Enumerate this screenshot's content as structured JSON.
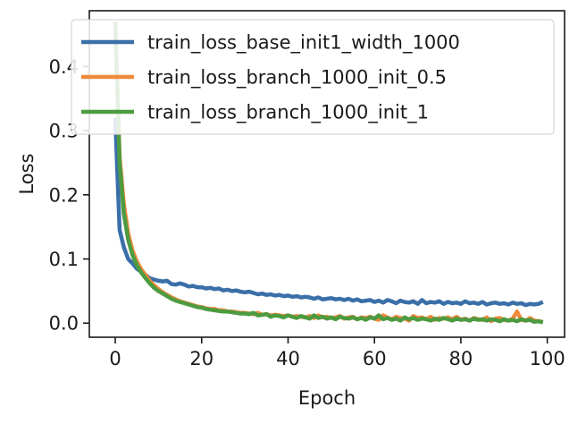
{
  "chart_data": {
    "type": "line",
    "xlabel": "Epoch",
    "ylabel": "Loss",
    "xlim": [
      -6,
      104
    ],
    "ylim": [
      -0.022,
      0.487
    ],
    "xticks": [
      0,
      20,
      40,
      60,
      80,
      100
    ],
    "yticks": [
      0.0,
      0.1,
      0.2,
      0.3,
      0.4
    ],
    "xtick_labels": [
      "0",
      "20",
      "40",
      "60",
      "80",
      "100"
    ],
    "ytick_labels": [
      "0.0",
      "0.1",
      "0.2",
      "0.3",
      "0.4"
    ],
    "grid": false,
    "legend_position": "top",
    "x": [
      0,
      1,
      2,
      3,
      4,
      5,
      6,
      7,
      8,
      9,
      10,
      11,
      12,
      13,
      14,
      15,
      16,
      17,
      18,
      19,
      20,
      21,
      22,
      23,
      24,
      25,
      26,
      27,
      28,
      29,
      30,
      31,
      32,
      33,
      34,
      35,
      36,
      37,
      38,
      39,
      40,
      41,
      42,
      43,
      44,
      45,
      46,
      47,
      48,
      49,
      50,
      51,
      52,
      53,
      54,
      55,
      56,
      57,
      58,
      59,
      60,
      61,
      62,
      63,
      64,
      65,
      66,
      67,
      68,
      69,
      70,
      71,
      72,
      73,
      74,
      75,
      76,
      77,
      78,
      79,
      80,
      81,
      82,
      83,
      84,
      85,
      86,
      87,
      88,
      89,
      90,
      91,
      92,
      93,
      94,
      95,
      96,
      97,
      98,
      99
    ],
    "series": [
      {
        "name": "train_loss_base_init1_width_1000",
        "color": "#3a6fa8",
        "values": [
          0.32,
          0.145,
          0.118,
          0.1,
          0.093,
          0.085,
          0.08,
          0.075,
          0.07,
          0.068,
          0.066,
          0.065,
          0.066,
          0.061,
          0.06,
          0.062,
          0.06,
          0.057,
          0.058,
          0.056,
          0.056,
          0.054,
          0.055,
          0.053,
          0.054,
          0.051,
          0.052,
          0.05,
          0.051,
          0.049,
          0.048,
          0.049,
          0.047,
          0.045,
          0.046,
          0.044,
          0.045,
          0.043,
          0.044,
          0.042,
          0.043,
          0.041,
          0.042,
          0.04,
          0.041,
          0.04,
          0.038,
          0.04,
          0.037,
          0.038,
          0.039,
          0.037,
          0.038,
          0.036,
          0.038,
          0.035,
          0.037,
          0.034,
          0.035,
          0.036,
          0.033,
          0.035,
          0.032,
          0.036,
          0.034,
          0.031,
          0.035,
          0.033,
          0.032,
          0.034,
          0.03,
          0.036,
          0.031,
          0.033,
          0.032,
          0.034,
          0.03,
          0.033,
          0.031,
          0.032,
          0.03,
          0.034,
          0.031,
          0.032,
          0.03,
          0.033,
          0.029,
          0.031,
          0.032,
          0.03,
          0.031,
          0.029,
          0.032,
          0.03,
          0.031,
          0.028,
          0.03,
          0.029,
          0.03,
          0.033
        ]
      },
      {
        "name": "train_loss_branch_1000_init_0.5",
        "color": "#ee8a3b",
        "values": [
          0.47,
          0.26,
          0.185,
          0.14,
          0.113,
          0.096,
          0.084,
          0.075,
          0.066,
          0.059,
          0.053,
          0.048,
          0.044,
          0.04,
          0.037,
          0.034,
          0.032,
          0.03,
          0.028,
          0.026,
          0.025,
          0.023,
          0.022,
          0.022,
          0.02,
          0.02,
          0.018,
          0.018,
          0.017,
          0.016,
          0.016,
          0.015,
          0.014,
          0.016,
          0.013,
          0.014,
          0.012,
          0.013,
          0.012,
          0.011,
          0.012,
          0.01,
          0.011,
          0.01,
          0.009,
          0.011,
          0.008,
          0.012,
          0.009,
          0.01,
          0.008,
          0.009,
          0.011,
          0.007,
          0.009,
          0.01,
          0.006,
          0.009,
          0.008,
          0.01,
          0.007,
          0.005,
          0.012,
          0.009,
          0.006,
          0.01,
          0.008,
          0.007,
          0.004,
          0.011,
          0.008,
          0.009,
          0.006,
          0.01,
          0.005,
          0.008,
          0.007,
          0.009,
          0.006,
          0.01,
          0.005,
          0.007,
          0.004,
          0.008,
          0.006,
          0.005,
          0.009,
          0.003,
          0.007,
          0.008,
          0.005,
          0.004,
          0.007,
          0.018,
          0.005,
          0.004,
          0.008,
          0.004,
          0.003,
          0.002
        ]
      },
      {
        "name": "train_loss_branch_1000_init_1",
        "color": "#4d9b41",
        "values": [
          0.47,
          0.25,
          0.17,
          0.13,
          0.106,
          0.09,
          0.079,
          0.07,
          0.062,
          0.055,
          0.05,
          0.046,
          0.042,
          0.038,
          0.035,
          0.033,
          0.031,
          0.029,
          0.027,
          0.025,
          0.024,
          0.022,
          0.021,
          0.02,
          0.019,
          0.018,
          0.018,
          0.017,
          0.016,
          0.015,
          0.015,
          0.014,
          0.016,
          0.012,
          0.013,
          0.014,
          0.01,
          0.012,
          0.011,
          0.009,
          0.012,
          0.01,
          0.008,
          0.011,
          0.009,
          0.007,
          0.012,
          0.008,
          0.01,
          0.007,
          0.009,
          0.006,
          0.01,
          0.008,
          0.007,
          0.009,
          0.006,
          0.008,
          0.005,
          0.009,
          0.007,
          0.012,
          0.006,
          0.008,
          0.005,
          0.007,
          0.004,
          0.009,
          0.006,
          0.008,
          0.005,
          0.007,
          0.006,
          0.004,
          0.007,
          0.005,
          0.008,
          0.006,
          0.004,
          0.007,
          0.005,
          0.006,
          0.004,
          0.007,
          0.005,
          0.006,
          0.004,
          0.006,
          0.005,
          0.003,
          0.006,
          0.004,
          0.005,
          0.003,
          0.006,
          0.004,
          0.005,
          0.002,
          0.003,
          0.001
        ]
      }
    ]
  }
}
